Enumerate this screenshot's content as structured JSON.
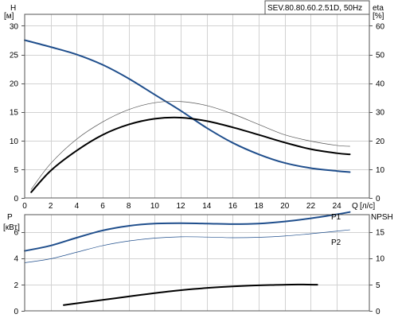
{
  "chart_data": [
    {
      "type": "line",
      "title": "SEV.80.80.60.2.51D, 50Hz",
      "xlabel": "Q",
      "xunit": "[л/с]",
      "ylabel_left": "H",
      "yunit_left": "[м]",
      "ylabel_right": "eta",
      "yunit_right": "[%]",
      "xlim": [
        0,
        26.5
      ],
      "ylim_left": [
        0,
        32
      ],
      "ylim_right": [
        0,
        64
      ],
      "x_ticks": [
        "0",
        "2",
        "4",
        "6",
        "8",
        "10",
        "12",
        "14",
        "16",
        "18",
        "20",
        "22",
        "24"
      ],
      "y_left_ticks": [
        "0",
        "5",
        "10",
        "15",
        "20",
        "25",
        "30"
      ],
      "y_right_ticks": [
        "0",
        "10",
        "20",
        "30",
        "40",
        "50",
        "60"
      ],
      "grid": true,
      "series": [
        {
          "color": "#1f4e8c",
          "axis": "left",
          "width": 2,
          "x": [
            0,
            2,
            4,
            6,
            8,
            10,
            12,
            14,
            16,
            18,
            20,
            22,
            24,
            25
          ],
          "y": [
            27.5,
            26.3,
            25.0,
            23.2,
            20.8,
            18.0,
            15.2,
            12.2,
            9.6,
            7.6,
            6.1,
            5.2,
            4.7,
            4.5
          ]
        },
        {
          "color": "#555555",
          "axis": "right",
          "width": 0.7,
          "x": [
            0.5,
            2,
            4,
            6,
            8,
            10,
            12,
            14,
            16,
            18,
            20,
            22,
            24,
            25
          ],
          "y": [
            3,
            12,
            20.5,
            26.5,
            30.8,
            33.2,
            33.6,
            32.2,
            29.3,
            25.6,
            22.0,
            19.8,
            18.3,
            18.0
          ]
        },
        {
          "color": "#000000",
          "axis": "right",
          "width": 2,
          "x": [
            0.5,
            2,
            4,
            6,
            8,
            10,
            12,
            14,
            16,
            18,
            20,
            22,
            24,
            25
          ],
          "y": [
            2,
            9.5,
            16.5,
            22.0,
            25.6,
            27.6,
            28.0,
            26.8,
            24.6,
            22.0,
            19.3,
            17.0,
            15.6,
            15.2
          ]
        }
      ]
    },
    {
      "type": "line",
      "ylabel_left": "P",
      "yunit_left": "[кВт]",
      "ylabel_right": "NPSH",
      "yunit_right": "",
      "xlim": [
        0,
        26.5
      ],
      "ylim_left": [
        0,
        7.3
      ],
      "ylim_right": [
        0,
        18.25
      ],
      "y_left_ticks": [
        "0",
        "2",
        "4",
        "6"
      ],
      "y_right_ticks": [
        "0",
        "5",
        "10",
        "15"
      ],
      "grid": true,
      "series": [
        {
          "name": "P1",
          "color": "#1f4e8c",
          "axis": "left",
          "width": 2,
          "x": [
            0,
            2,
            4,
            6,
            8,
            10,
            12,
            14,
            16,
            18,
            20,
            22,
            24,
            25
          ],
          "y": [
            4.55,
            4.95,
            5.55,
            6.1,
            6.45,
            6.62,
            6.65,
            6.62,
            6.58,
            6.62,
            6.78,
            7.02,
            7.32,
            7.5
          ]
        },
        {
          "name": "P2",
          "color": "#1f4e8c",
          "axis": "left",
          "width": 0.7,
          "x": [
            0,
            2,
            4,
            6,
            8,
            10,
            12,
            14,
            16,
            18,
            20,
            22,
            24,
            25
          ],
          "y": [
            3.65,
            3.95,
            4.45,
            4.95,
            5.3,
            5.52,
            5.62,
            5.6,
            5.55,
            5.58,
            5.68,
            5.85,
            6.05,
            6.15
          ]
        },
        {
          "color": "#000000",
          "axis": "right",
          "width": 2,
          "x": [
            3,
            5,
            7,
            9,
            11,
            13,
            15,
            17,
            19,
            21,
            22.5
          ],
          "y": [
            1.1,
            1.75,
            2.4,
            3.05,
            3.65,
            4.15,
            4.5,
            4.75,
            4.9,
            5.0,
            4.95
          ]
        }
      ]
    }
  ]
}
